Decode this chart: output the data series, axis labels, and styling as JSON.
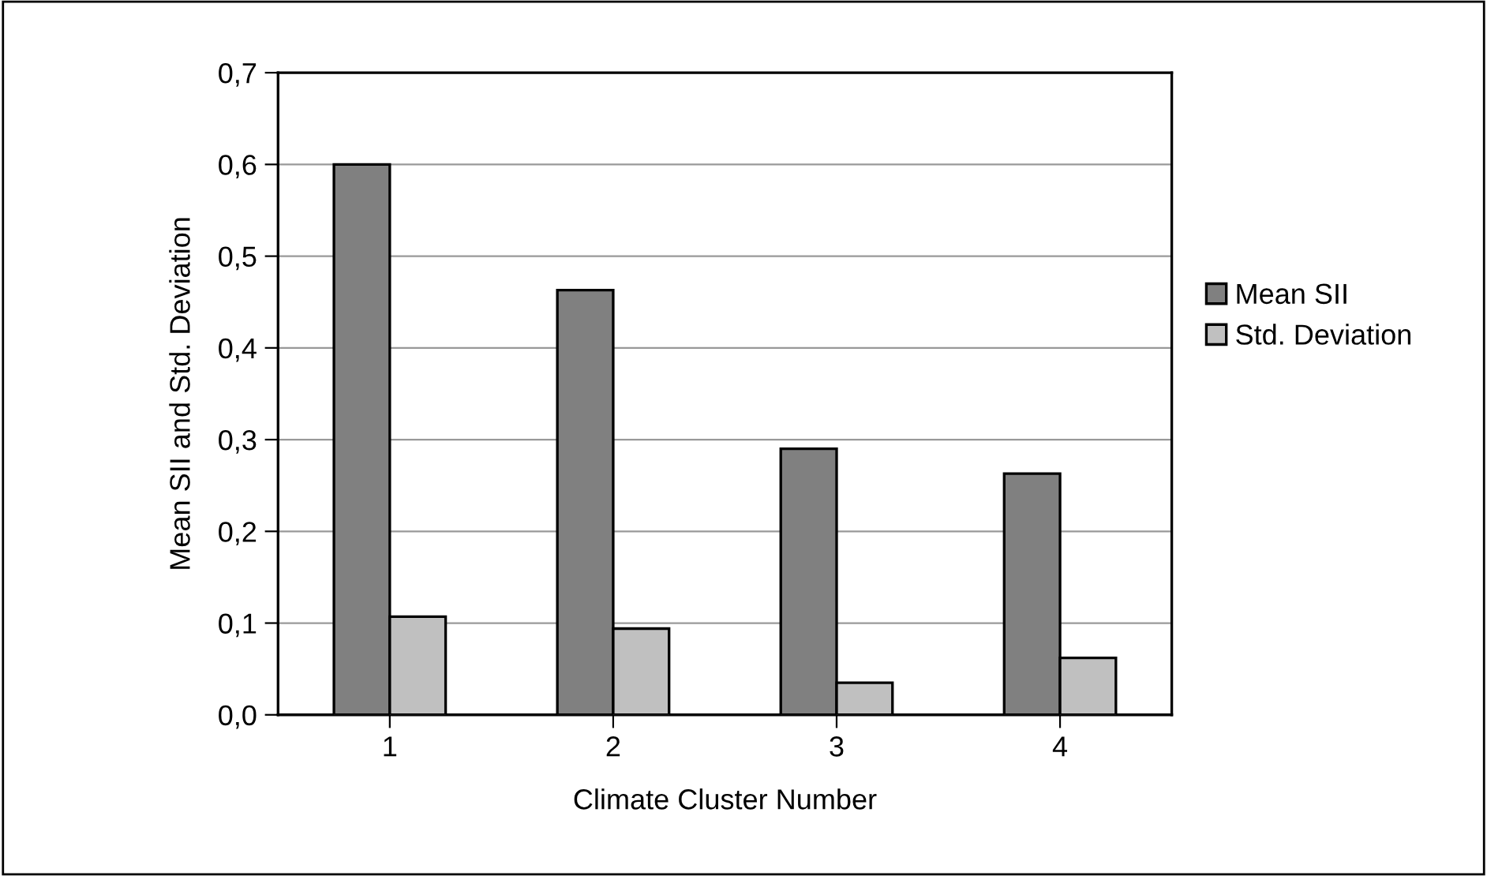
{
  "chart_data": {
    "type": "bar",
    "xlabel": "Climate Cluster Number",
    "ylabel": "Mean SII and Std. Deviation",
    "categories": [
      "1",
      "2",
      "3",
      "4"
    ],
    "series": [
      {
        "name": "Mean SII",
        "color": "#808080",
        "values": [
          0.6,
          0.463,
          0.29,
          0.263
        ]
      },
      {
        "name": "Std. Deviation",
        "color": "#c0c0c0",
        "values": [
          0.107,
          0.094,
          0.035,
          0.062
        ]
      }
    ],
    "ylim": [
      0,
      0.7
    ],
    "yticks": [
      {
        "value": 0,
        "label": "0,0"
      },
      {
        "value": 0.1,
        "label": "0,1"
      },
      {
        "value": 0.2,
        "label": "0,2"
      },
      {
        "value": 0.3,
        "label": "0,3"
      },
      {
        "value": 0.4,
        "label": "0,4"
      },
      {
        "value": 0.5,
        "label": "0,5"
      },
      {
        "value": 0.6,
        "label": "0,6"
      },
      {
        "value": 0.7,
        "label": "0,7"
      }
    ],
    "grid": "y",
    "legend": "right"
  }
}
